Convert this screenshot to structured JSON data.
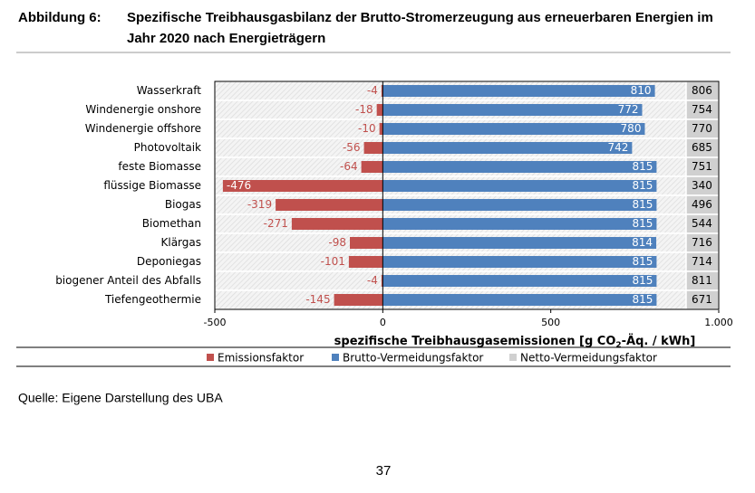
{
  "figure_label": "Abbildung 6:",
  "source": "Quelle: Eigene Darstellung des UBA",
  "page_number": "37",
  "chart_data": {
    "type": "bar",
    "orientation": "horizontal",
    "title": [
      "Spezifische Treibhausgasbilanz der Brutto-Stromerzeugung aus erneuerbaren Energien im",
      "Jahr 2020 nach Energieträgern"
    ],
    "categories": [
      "Wasserkraft",
      "Windenergie onshore",
      "Windenergie offshore",
      "Photovoltaik",
      "feste Biomasse",
      "flüssige Biomasse",
      "Biogas",
      "Biomethan",
      "Klärgas",
      "Deponiegas",
      "biogener Anteil des Abfalls",
      "Tiefengeothermie"
    ],
    "series": [
      {
        "name": "Emissionsfaktor",
        "color": "#c0504d",
        "values": [
          -4,
          -18,
          -10,
          -56,
          -64,
          -476,
          -319,
          -271,
          -98,
          -101,
          -4,
          -145
        ]
      },
      {
        "name": "Brutto-Vermeidungsfaktor",
        "color": "#4f81bd",
        "values": [
          810,
          772,
          780,
          742,
          815,
          815,
          815,
          815,
          814,
          815,
          815,
          815
        ]
      },
      {
        "name": "Netto-Vermeidungsfaktor",
        "color": "#d0d0d0",
        "values": [
          806,
          754,
          770,
          685,
          751,
          340,
          496,
          544,
          716,
          714,
          811,
          671
        ]
      }
    ],
    "x_label": [
      "spezifische Treibhausgasemissionen [g CO",
      "2",
      "-Äq. / kWh]"
    ],
    "xlim": [
      -500,
      1000
    ],
    "xticks": [
      -500,
      0,
      500,
      {
        "value": 1000,
        "label": "1.000"
      }
    ]
  }
}
